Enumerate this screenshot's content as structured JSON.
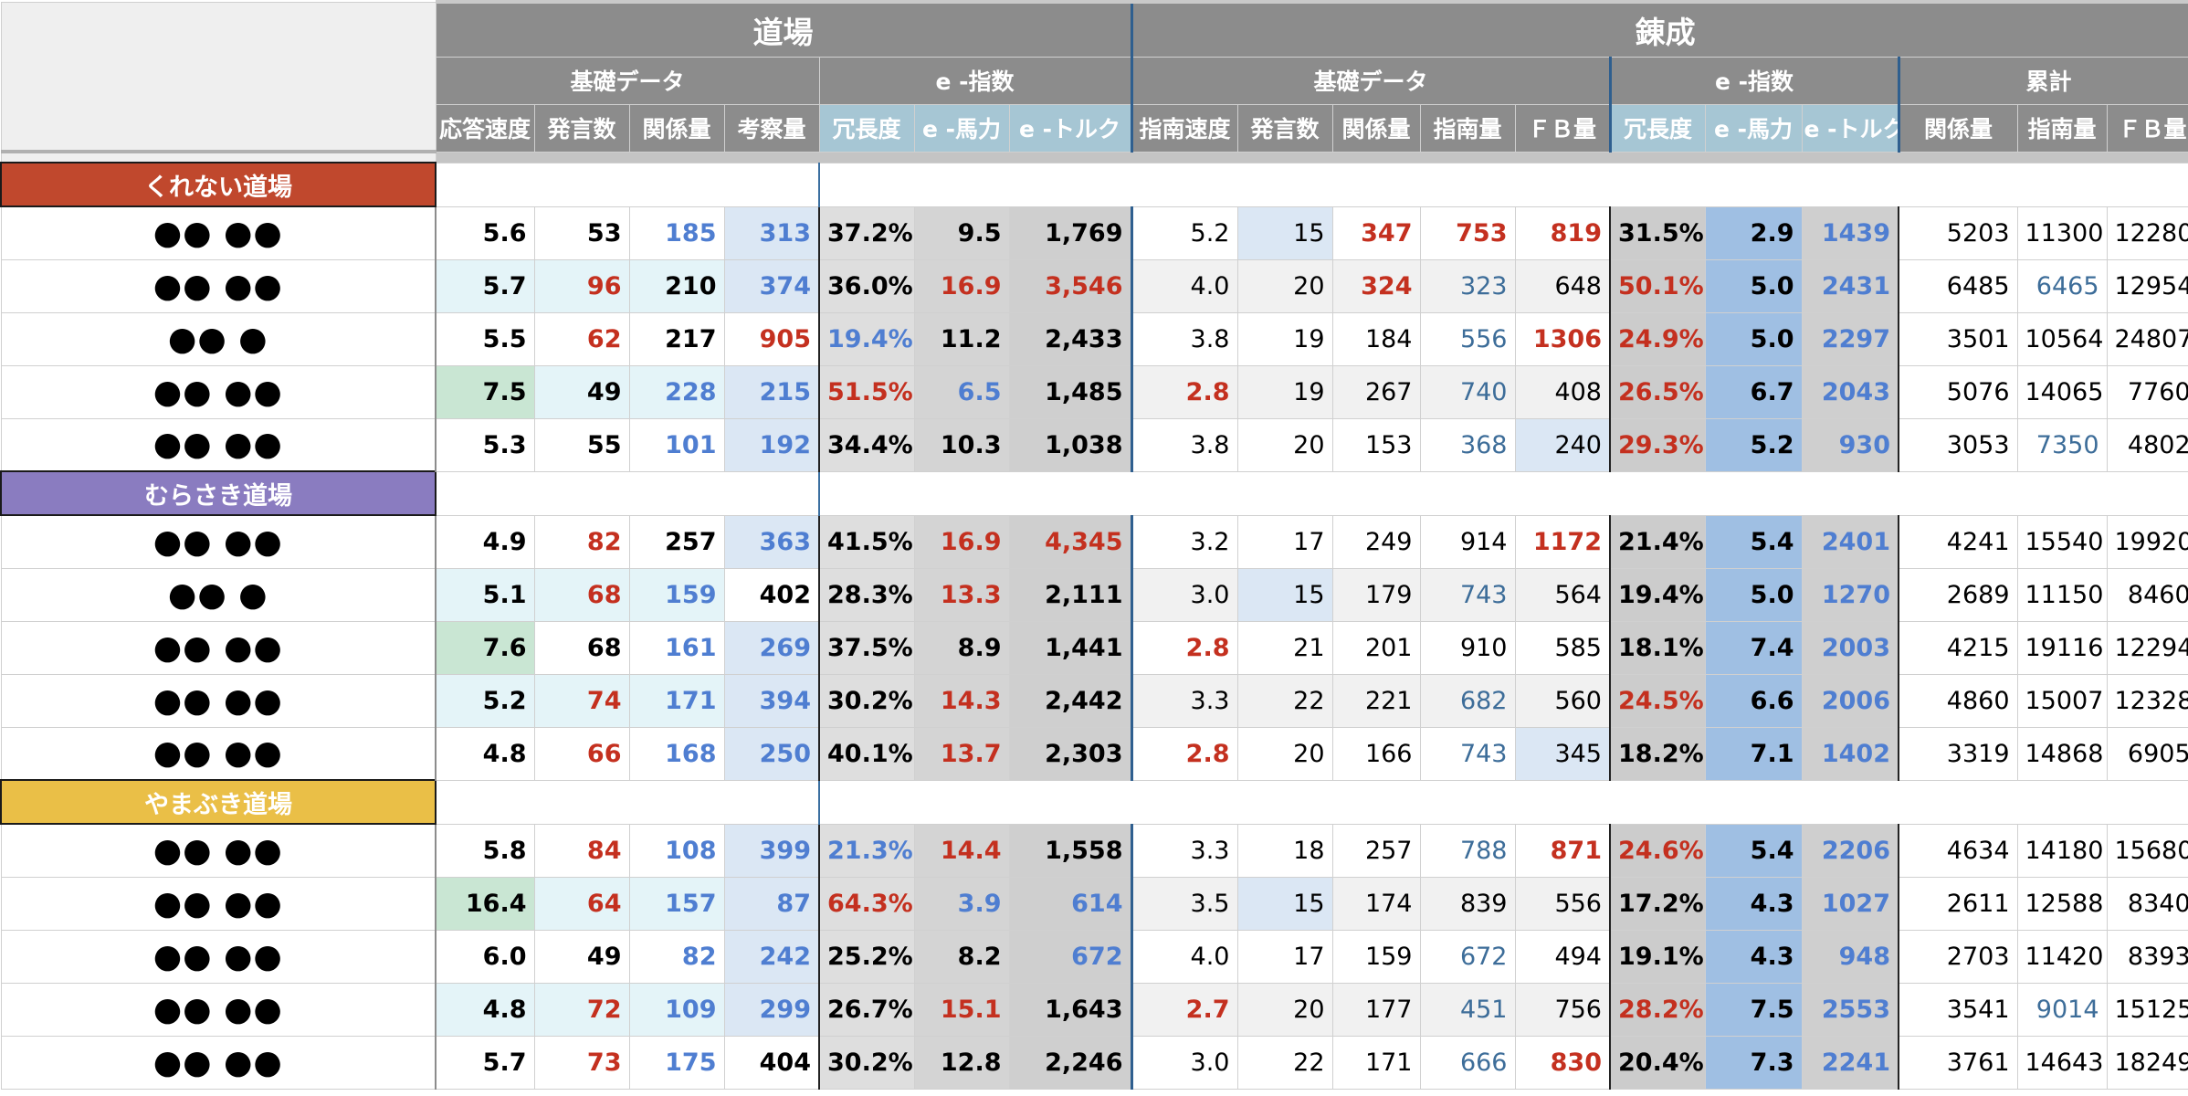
{
  "header": {
    "section_dojo": "道場",
    "section_rensei": "錬成",
    "dojo_groups": [
      "基礎データ",
      "e -指数"
    ],
    "rensei_groups": [
      "基礎データ",
      "e -指数",
      "累計"
    ],
    "dojo_cols": [
      "応答速度",
      "発言数",
      "関係量",
      "考察量",
      "冗長度",
      "e -馬力",
      "e -トルク"
    ],
    "rensei_cols": [
      "指南速度",
      "発言数",
      "関係量",
      "指南量",
      "ＦＢ量",
      "冗長度",
      "e -馬力",
      "e -トルク",
      "関係量",
      "指南量",
      "ＦＢ量"
    ]
  },
  "colors": {
    "header_gray": "#8c8c8c",
    "e_header_teal": "#a6c6d4",
    "red_value": "#c4301f",
    "blue_value": "#4f7ed1",
    "group_kurenai": "#c0482d",
    "group_murasaki": "#8a7cc0",
    "group_yamabuki": "#eabf47"
  },
  "groups": [
    {
      "name": "くれない道場",
      "color": "#c0482d",
      "rows": [
        {
          "name": "●● ●●",
          "cells": [
            "5.6",
            "53",
            "185",
            "313",
            "37.2%",
            "9.5",
            "1,769",
            "5.2",
            "15",
            "347",
            "753",
            "819",
            "31.5%",
            "2.9",
            "1439",
            "5203",
            "11300",
            "12280"
          ]
        },
        {
          "name": "●● ●●",
          "cells": [
            "5.7",
            "96",
            "210",
            "374",
            "36.0%",
            "16.9",
            "3,546",
            "4.0",
            "20",
            "324",
            "323",
            "648",
            "50.1%",
            "5.0",
            "2431",
            "6485",
            "6465",
            "12954"
          ]
        },
        {
          "name": "●● ●",
          "cells": [
            "5.5",
            "62",
            "217",
            "905",
            "19.4%",
            "11.2",
            "2,433",
            "3.8",
            "19",
            "184",
            "556",
            "1306",
            "24.9%",
            "5.0",
            "2297",
            "3501",
            "10564",
            "24807"
          ]
        },
        {
          "name": "●● ●●",
          "cells": [
            "7.5",
            "49",
            "228",
            "215",
            "51.5%",
            "6.5",
            "1,485",
            "2.8",
            "19",
            "267",
            "740",
            "408",
            "26.5%",
            "6.7",
            "2043",
            "5076",
            "14065",
            "7760"
          ]
        },
        {
          "name": "●● ●●",
          "cells": [
            "5.3",
            "55",
            "101",
            "192",
            "34.4%",
            "10.3",
            "1,038",
            "3.8",
            "20",
            "153",
            "368",
            "240",
            "29.3%",
            "5.2",
            "930",
            "3053",
            "7350",
            "4802"
          ]
        }
      ]
    },
    {
      "name": "むらさき道場",
      "color": "#8a7cc0",
      "rows": [
        {
          "name": "●● ●●",
          "cells": [
            "4.9",
            "82",
            "257",
            "363",
            "41.5%",
            "16.9",
            "4,345",
            "3.2",
            "17",
            "249",
            "914",
            "1172",
            "21.4%",
            "5.4",
            "2401",
            "4241",
            "15540",
            "19920"
          ]
        },
        {
          "name": "●● ●",
          "cells": [
            "5.1",
            "68",
            "159",
            "402",
            "28.3%",
            "13.3",
            "2,111",
            "3.0",
            "15",
            "179",
            "743",
            "564",
            "19.4%",
            "5.0",
            "1270",
            "2689",
            "11150",
            "8460"
          ]
        },
        {
          "name": "●● ●●",
          "cells": [
            "7.6",
            "68",
            "161",
            "269",
            "37.5%",
            "8.9",
            "1,441",
            "2.8",
            "21",
            "201",
            "910",
            "585",
            "18.1%",
            "7.4",
            "2003",
            "4215",
            "19116",
            "12294"
          ]
        },
        {
          "name": "●● ●●",
          "cells": [
            "5.2",
            "74",
            "171",
            "394",
            "30.2%",
            "14.3",
            "2,442",
            "3.3",
            "22",
            "221",
            "682",
            "560",
            "24.5%",
            "6.6",
            "2006",
            "4860",
            "15007",
            "12328"
          ]
        },
        {
          "name": "●● ●●",
          "cells": [
            "4.8",
            "66",
            "168",
            "250",
            "40.1%",
            "13.7",
            "2,303",
            "2.8",
            "20",
            "166",
            "743",
            "345",
            "18.2%",
            "7.1",
            "1402",
            "3319",
            "14868",
            "6905"
          ]
        }
      ]
    },
    {
      "name": "やまぶき道場",
      "color": "#eabf47",
      "rows": [
        {
          "name": "●● ●●",
          "cells": [
            "5.8",
            "84",
            "108",
            "399",
            "21.3%",
            "14.4",
            "1,558",
            "3.3",
            "18",
            "257",
            "788",
            "871",
            "24.6%",
            "5.4",
            "2206",
            "4634",
            "14180",
            "15680"
          ]
        },
        {
          "name": "●● ●●",
          "cells": [
            "16.4",
            "64",
            "157",
            "87",
            "64.3%",
            "3.9",
            "614",
            "3.5",
            "15",
            "174",
            "839",
            "556",
            "17.2%",
            "4.3",
            "1027",
            "2611",
            "12588",
            "8340"
          ]
        },
        {
          "name": "●● ●●",
          "cells": [
            "6.0",
            "49",
            "82",
            "242",
            "25.2%",
            "8.2",
            "672",
            "4.0",
            "17",
            "159",
            "672",
            "494",
            "19.1%",
            "4.3",
            "948",
            "2703",
            "11420",
            "8393"
          ]
        },
        {
          "name": "●● ●●",
          "cells": [
            "4.8",
            "72",
            "109",
            "299",
            "26.7%",
            "15.1",
            "1,643",
            "2.7",
            "20",
            "177",
            "451",
            "756",
            "28.2%",
            "7.5",
            "2553",
            "3541",
            "9014",
            "15125"
          ]
        },
        {
          "name": "●● ●●",
          "cells": [
            "5.7",
            "73",
            "175",
            "404",
            "30.2%",
            "12.8",
            "2,246",
            "3.0",
            "22",
            "171",
            "666",
            "830",
            "20.4%",
            "7.3",
            "2241",
            "3761",
            "14643",
            "18249"
          ]
        }
      ]
    }
  ]
}
